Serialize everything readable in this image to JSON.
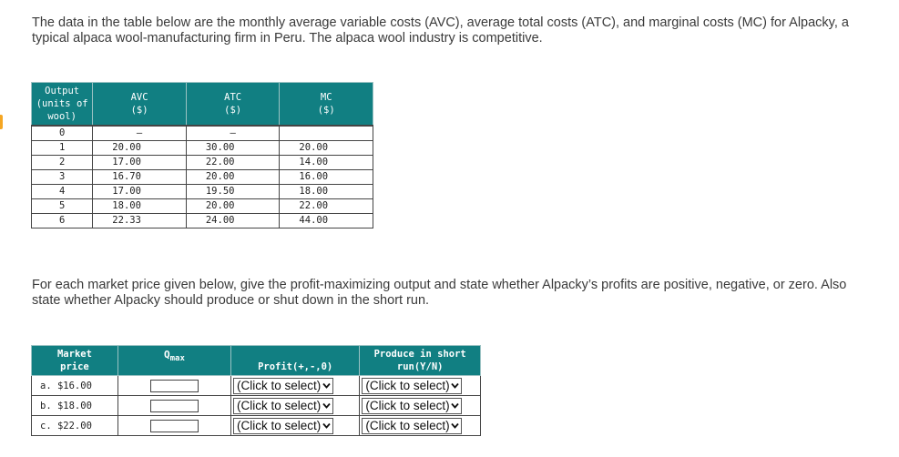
{
  "intro": "The data in the table below are the monthly average variable costs (AVC), average total costs (ATC), and marginal costs (MC) for Alpacky, a typical alpaca wool-manufacturing firm in Peru. The alpaca wool industry is competitive.",
  "cost_table": {
    "headers": {
      "output_line1": "Output",
      "output_line2": "(units of",
      "output_line3": "wool)",
      "avc_line1": "AVC",
      "avc_line2": "($)",
      "atc_line1": "ATC",
      "atc_line2": "($)",
      "mc_line1": "MC",
      "mc_line2": "($)"
    },
    "rows": [
      {
        "output": "0",
        "avc": "—",
        "atc": "—",
        "mc": ""
      },
      {
        "output": "1",
        "avc": "20.00",
        "atc": "30.00",
        "mc": "20.00"
      },
      {
        "output": "2",
        "avc": "17.00",
        "atc": "22.00",
        "mc": "14.00"
      },
      {
        "output": "3",
        "avc": "16.70",
        "atc": "20.00",
        "mc": "16.00"
      },
      {
        "output": "4",
        "avc": "17.00",
        "atc": "19.50",
        "mc": "18.00"
      },
      {
        "output": "5",
        "avc": "18.00",
        "atc": "20.00",
        "mc": "22.00"
      },
      {
        "output": "6",
        "avc": "22.33",
        "atc": "24.00",
        "mc": "44.00"
      }
    ]
  },
  "question": "For each market price given below, give the profit-maximizing output and state whether Alpacky’s profits are positive, negative, or zero. Also state whether Alpacky should produce or shut down in the short run.",
  "answer_table": {
    "headers": {
      "price_line1": "Market",
      "price_line2": "price",
      "qmax_main": "Q",
      "qmax_sub": "max",
      "profit": "Profit(+,-,0)",
      "produce_line1": "Produce in short",
      "produce_line2": "run(Y/N)"
    },
    "rows": [
      {
        "price": "a. $16.00",
        "profit_select": "(Click to select)",
        "produce_select": "(Click to select)"
      },
      {
        "price": "b. $18.00",
        "profit_select": "(Click to select)",
        "produce_select": "(Click to select)"
      },
      {
        "price": "c. $22.00",
        "profit_select": "(Click to select)",
        "produce_select": "(Click to select)"
      }
    ]
  },
  "icons": {
    "select": "chevron-down-icon"
  },
  "colors": {
    "header_bg": "#117f82",
    "accent": "#f5a623"
  }
}
